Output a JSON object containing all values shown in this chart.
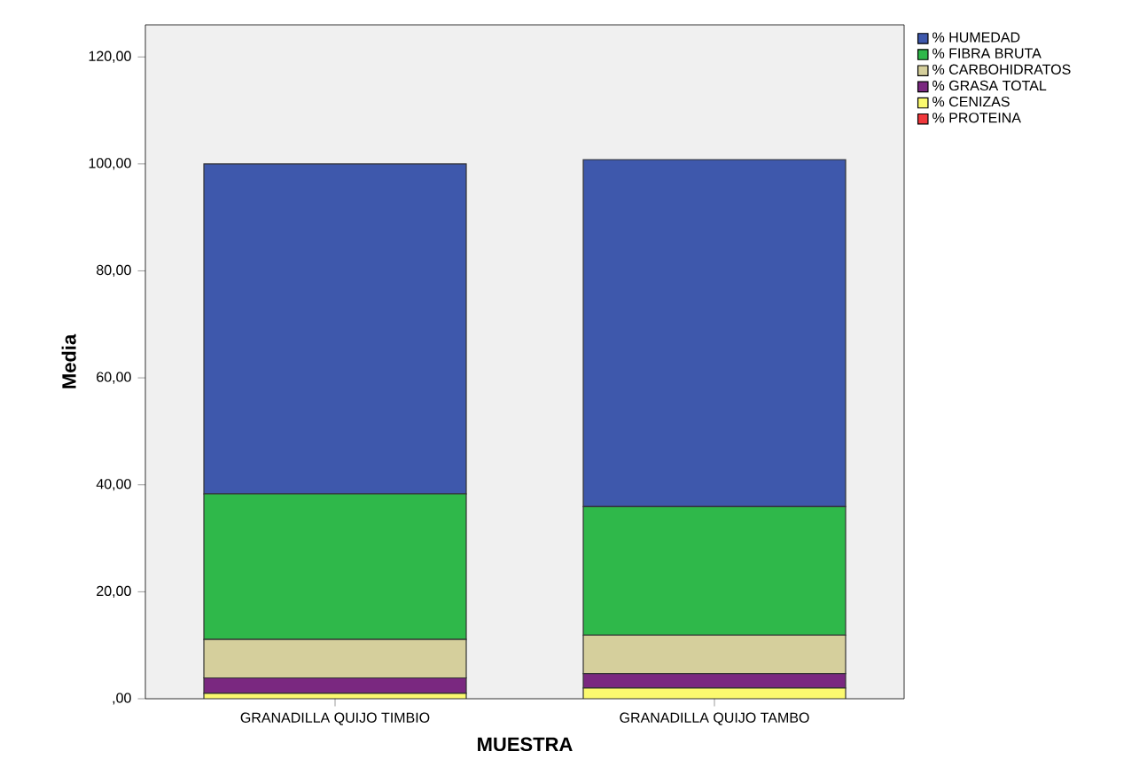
{
  "chart_data": {
    "type": "bar",
    "stacked": true,
    "xlabel": "MUESTRA",
    "ylabel": "Media",
    "categories": [
      "GRANADILLA QUIJO TIMBIO",
      "GRANADILLA QUIJO TAMBO"
    ],
    "series": [
      {
        "name": "% PROTEINA",
        "color": "#f0383c",
        "values": [
          0,
          0
        ]
      },
      {
        "name": "% CENIZAS",
        "color": "#fbf96f",
        "values": [
          1.0,
          2.0
        ]
      },
      {
        "name": "% GRASA TOTAL",
        "color": "#7a2880",
        "values": [
          2.9,
          2.7
        ]
      },
      {
        "name": "% CARBOHIDRATOS",
        "color": "#d5cf9c",
        "values": [
          7.2,
          7.2
        ]
      },
      {
        "name": "% FIBRA BRUTA",
        "color": "#2fb84a",
        "values": [
          27.2,
          24.0
        ]
      },
      {
        "name": "% HUMEDAD",
        "color": "#3e58ac",
        "values": [
          61.7,
          64.9
        ]
      }
    ],
    "ylim": [
      0,
      126
    ],
    "yticks": [
      {
        "value": 0,
        "label": ",00"
      },
      {
        "value": 20,
        "label": "20,00"
      },
      {
        "value": 40,
        "label": "40,00"
      },
      {
        "value": 60,
        "label": "60,00"
      },
      {
        "value": 80,
        "label": "80,00"
      },
      {
        "value": 100,
        "label": "100,00"
      },
      {
        "value": 120,
        "label": "120,00"
      }
    ],
    "grid": false,
    "legend": "top right"
  }
}
